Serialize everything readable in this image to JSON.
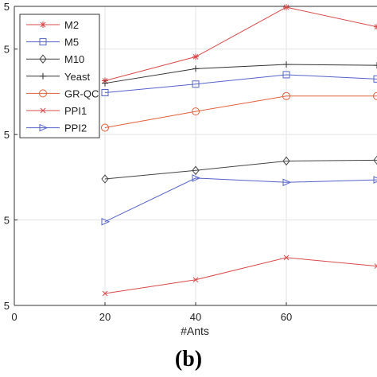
{
  "panel_label": "(b)",
  "chart_data": {
    "type": "line",
    "xlabel": "#Ants",
    "ylabel": "",
    "xlim": [
      0,
      80
    ],
    "ylim": [
      65,
      100
    ],
    "x_ticks": [
      0,
      20,
      40,
      60
    ],
    "y_tick_labels": [
      "5",
      "5",
      "5",
      "5",
      "5"
    ],
    "y_tick_values": [
      65,
      75,
      85,
      95,
      100
    ],
    "grid": true,
    "legend_position": "top-left",
    "x": [
      20,
      40,
      60,
      80
    ],
    "series": [
      {
        "name": "M2",
        "color": "#d94b4b",
        "marker": "star",
        "values": [
          91.3,
          94.1,
          99.9,
          97.6
        ]
      },
      {
        "name": "M5",
        "color": "#5563c8",
        "marker": "square",
        "values": [
          89.9,
          90.9,
          92.0,
          91.5
        ]
      },
      {
        "name": "M10",
        "color": "#444444",
        "marker": "diamond",
        "values": [
          79.8,
          80.8,
          81.9,
          82.0
        ]
      },
      {
        "name": "Yeast",
        "color": "#333333",
        "marker": "plus",
        "values": [
          91.0,
          92.7,
          93.2,
          93.1
        ]
      },
      {
        "name": "GR-QC",
        "color": "#e0603a",
        "marker": "circle",
        "values": [
          85.8,
          87.7,
          89.5,
          89.5
        ]
      },
      {
        "name": "PPI1",
        "color": "#d94b4b",
        "marker": "x",
        "values": [
          66.4,
          68.0,
          70.6,
          69.6
        ]
      },
      {
        "name": "PPI2",
        "color": "#5563c8",
        "marker": "triangle-right",
        "values": [
          74.8,
          79.9,
          79.4,
          79.7
        ]
      }
    ]
  }
}
